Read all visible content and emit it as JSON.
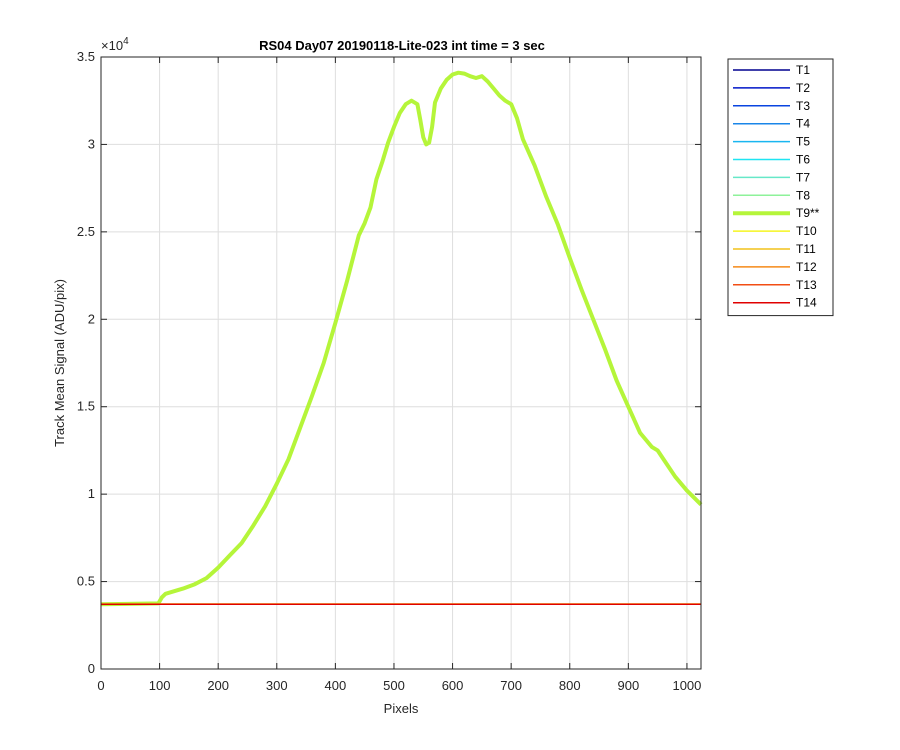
{
  "chart_data": {
    "type": "line",
    "title": "RS04 Day07 20190118-Lite-023 int time = 3 sec",
    "xlabel": "Pixels",
    "ylabel": "Track Mean Signal (ADU/pix)",
    "xlim": [
      0,
      1024
    ],
    "ylim": [
      0,
      35000
    ],
    "xticks": [
      0,
      100,
      200,
      300,
      400,
      500,
      600,
      700,
      800,
      900,
      1000
    ],
    "yticks": [
      0,
      5000,
      10000,
      15000,
      20000,
      25000,
      30000,
      35000
    ],
    "ytick_labels": [
      "0",
      "0.5",
      "1",
      "1.5",
      "2",
      "2.5",
      "3",
      "3.5"
    ],
    "y_exponent_label": "×10",
    "y_exponent_power": "4",
    "grid": true,
    "legend_position": "outside-right",
    "series": [
      {
        "name": "T1",
        "color": "#00008f",
        "width": 1.5,
        "flat": 3700
      },
      {
        "name": "T2",
        "color": "#0016c8",
        "width": 1.5,
        "flat": 3700
      },
      {
        "name": "T3",
        "color": "#0a44e0",
        "width": 1.5,
        "flat": 3700
      },
      {
        "name": "T4",
        "color": "#1a86e8",
        "width": 1.5,
        "flat": 3700
      },
      {
        "name": "T5",
        "color": "#1ab6f0",
        "width": 1.5,
        "flat": 3700
      },
      {
        "name": "T6",
        "color": "#1fe5f2",
        "width": 1.5,
        "flat": 3700
      },
      {
        "name": "T7",
        "color": "#66e8c8",
        "width": 1.5,
        "flat": 3700
      },
      {
        "name": "T8",
        "color": "#8ef29a",
        "width": 1.5,
        "flat": 3700
      },
      {
        "name": "T9**",
        "color": "#b5f53a",
        "width": 4,
        "x": [
          0,
          98,
          104,
          110,
          120,
          140,
          160,
          180,
          200,
          220,
          240,
          260,
          280,
          300,
          320,
          340,
          360,
          380,
          400,
          420,
          440,
          450,
          460,
          470,
          480,
          490,
          500,
          510,
          520,
          530,
          540,
          545,
          550,
          555,
          560,
          565,
          570,
          580,
          590,
          600,
          610,
          620,
          630,
          640,
          650,
          660,
          670,
          680,
          690,
          700,
          710,
          720,
          740,
          760,
          780,
          800,
          820,
          840,
          860,
          880,
          900,
          920,
          940,
          950,
          960,
          980,
          1000,
          1024
        ],
        "y": [
          3700,
          3750,
          4100,
          4300,
          4400,
          4600,
          4850,
          5200,
          5800,
          6500,
          7200,
          8200,
          9300,
          10600,
          12000,
          13800,
          15600,
          17500,
          19800,
          22200,
          24800,
          25500,
          26400,
          28000,
          29000,
          30100,
          31000,
          31800,
          32300,
          32500,
          32300,
          31400,
          30400,
          30000,
          30100,
          31000,
          32400,
          33200,
          33700,
          34000,
          34100,
          34050,
          33900,
          33800,
          33900,
          33600,
          33200,
          32800,
          32500,
          32300,
          31500,
          30300,
          28800,
          27000,
          25400,
          23500,
          21700,
          20000,
          18300,
          16500,
          15000,
          13500,
          12700,
          12500,
          12000,
          11000,
          10200,
          9400
        ]
      },
      {
        "name": "T10",
        "color": "#f5f520",
        "width": 1.5,
        "flat": 3720
      },
      {
        "name": "T11",
        "color": "#f2c21a",
        "width": 1.5,
        "flat": 3710
      },
      {
        "name": "T12",
        "color": "#f58a18",
        "width": 1.5,
        "flat": 3705
      },
      {
        "name": "T13",
        "color": "#f24e14",
        "width": 1.5,
        "flat": 3702
      },
      {
        "name": "T14",
        "color": "#e00000",
        "width": 1.5,
        "flat": 3700
      }
    ]
  }
}
